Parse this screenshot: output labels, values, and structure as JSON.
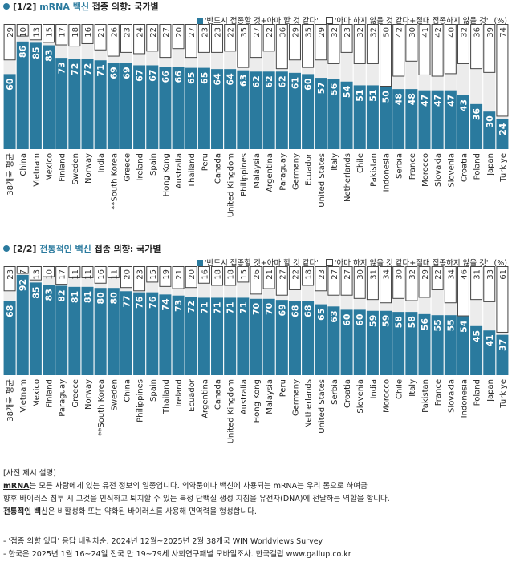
{
  "colors": {
    "accent": "#2a7a9e",
    "bar_bg": "#ececec",
    "top_border": "#444444"
  },
  "panels": [
    {
      "prefix": "[1/2] ",
      "highlight": "mRNA 백신",
      "suffix": " 접종 의향: 국가별",
      "legend_a": "'반드시 접종할 것+아마 할 것 같다'",
      "legend_b": "'아마 하지 않을 것 같다+절대 접종하지 않을 것'",
      "legend_unit": "(%)"
    },
    {
      "prefix": "[2/2] ",
      "highlight": "전통적인 백신",
      "suffix": " 접종 의향: 국가별",
      "legend_a": "'반드시 접종할 것+아마 할 것 같다'",
      "legend_b": "'아마 하지 않을 것 같다+절대 접종하지 않을 것'",
      "legend_unit": "(%)"
    }
  ],
  "chart_data": [
    {
      "type": "bar",
      "title": "[1/2] mRNA 백신 접종 의향: 국가별",
      "ylim": [
        0,
        100
      ],
      "categories": [
        "38개국 평균",
        "China",
        "Vietnam",
        "Mexico",
        "Finland",
        "Sweden",
        "Norway",
        "India",
        "**South Korea",
        "Greece",
        "Ireland",
        "Spain",
        "Hong Kong",
        "Australia",
        "Thailand",
        "Peru",
        "Canada",
        "United Kingdom",
        "Philippines",
        "Malaysia",
        "Argentina",
        "Paraguay",
        "Germany",
        "Ecuador",
        "United States",
        "Italy",
        "Netherlands",
        "Chile",
        "Pakistan",
        "Indonesia",
        "Serbia",
        "France",
        "Morocco",
        "Slovakia",
        "Slovenia",
        "Croatia",
        "Poland",
        "Japan",
        "Turkiye"
      ],
      "series": [
        {
          "name": "'반드시 접종할 것+아마 할 것 같다'",
          "values": [
            60,
            86,
            85,
            83,
            73,
            72,
            72,
            71,
            69,
            69,
            67,
            67,
            66,
            66,
            65,
            65,
            64,
            64,
            63,
            62,
            62,
            62,
            61,
            60,
            57,
            56,
            54,
            51,
            51,
            50,
            48,
            48,
            47,
            47,
            47,
            43,
            36,
            30,
            24
          ]
        },
        {
          "name": "'아마 하지 않을 것 같다+절대 접종하지 않을 것'",
          "values": [
            29,
            10,
            13,
            15,
            17,
            18,
            16,
            21,
            26,
            23,
            24,
            22,
            27,
            20,
            27,
            23,
            23,
            22,
            35,
            27,
            22,
            36,
            29,
            35,
            29,
            32,
            23,
            32,
            32,
            50,
            42,
            30,
            41,
            42,
            40,
            32,
            36,
            39,
            74
          ]
        }
      ]
    },
    {
      "type": "bar",
      "title": "[2/2] 전통적인 백신 접종 의향: 국가별",
      "ylim": [
        0,
        100
      ],
      "categories": [
        "38개국 평균",
        "Vietnam",
        "Mexico",
        "Finland",
        "Paraguay",
        "Greece",
        "Norway",
        "**South Korea",
        "Sweden",
        "China",
        "Philippines",
        "Spain",
        "Thailand",
        "Ireland",
        "Ecuador",
        "Argentina",
        "Canada",
        "United Kingdom",
        "Australia",
        "Hong Kong",
        "Malaysia",
        "Peru",
        "Germany",
        "Netherlands",
        "United States",
        "Serbia",
        "Croatia",
        "Slovenia",
        "India",
        "Morocco",
        "Chile",
        "Italy",
        "Pakistan",
        "France",
        "Slovakia",
        "Indonesia",
        "Poland",
        "Japan",
        "Turkiye"
      ],
      "series": [
        {
          "name": "'반드시 접종할 것+아마 할 것 같다'",
          "values": [
            68,
            92,
            85,
            83,
            82,
            81,
            81,
            80,
            80,
            77,
            76,
            76,
            74,
            73,
            72,
            71,
            71,
            71,
            71,
            70,
            70,
            69,
            68,
            68,
            65,
            63,
            60,
            60,
            59,
            59,
            58,
            58,
            56,
            55,
            55,
            54,
            45,
            41,
            37
          ]
        },
        {
          "name": "'아마 하지 않을 것 같다+절대 접종하지 않을 것'",
          "values": [
            23,
            7,
            13,
            10,
            17,
            11,
            11,
            16,
            11,
            20,
            23,
            15,
            19,
            21,
            20,
            16,
            18,
            18,
            15,
            26,
            21,
            27,
            22,
            18,
            23,
            27,
            27,
            30,
            31,
            34,
            30,
            32,
            29,
            22,
            34,
            46,
            31,
            33,
            61
          ]
        }
      ]
    }
  ],
  "notes": {
    "heading": "[사전 제시 설명]",
    "line1_term": "mRNA",
    "line1_rest": "는 모든 사람에게 있는 유전 정보의 일종입니다. 의약품이나 백신에 사용되는 mRNA는 우리 몸으로 하여금",
    "line2": "향후 바이러스 침투 시 그것을 인식하고 퇴치할 수 있는 특정 단백질 생성 지침을 유전자(DNA)에 전달하는 역할을 합니다.",
    "line3_term": "전통적인 백신",
    "line3_rest": "은 비활성화 또는 약화된 바이러스를 사용해 면역력을 형성합니다."
  },
  "sources": {
    "line1": "- '접종 의향 있다' 응답 내림차순. 2024년 12월~2025년 2월 38개국 WIN Worldviews Survey",
    "line2": "- 한국은 2025년 1월 16~24일 전국 만 19~79세 사회연구패널 모바일조사. 한국갤럽 www.gallup.co.kr"
  }
}
